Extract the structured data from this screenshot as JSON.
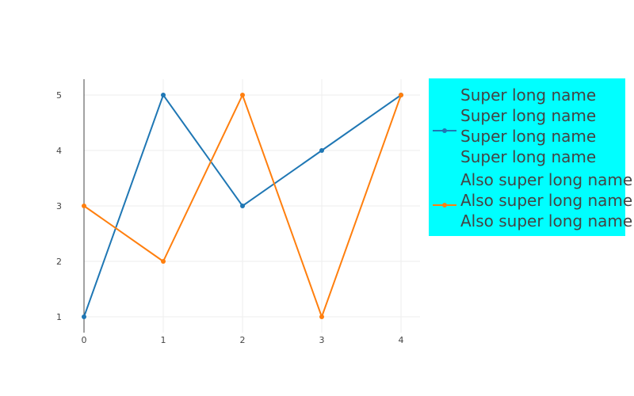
{
  "chart_data": {
    "type": "line",
    "x": [
      0,
      1,
      2,
      3,
      4
    ],
    "xlim": [
      0,
      4
    ],
    "ylim": [
      1,
      5
    ],
    "x_ticks": [
      "0",
      "1",
      "2",
      "3",
      "4"
    ],
    "y_ticks": [
      "1",
      "2",
      "3",
      "4",
      "5"
    ],
    "grid": true,
    "legend_position": "right",
    "legend_background": "#00ffff",
    "series": [
      {
        "name": "Super long name Super long name Super long name Super long name",
        "name_lines": [
          "Super long name",
          "Super long name",
          "Super long name",
          "Super long name"
        ],
        "values": [
          1,
          5,
          3,
          4,
          5
        ],
        "color": "#1f77b4",
        "mode": "lines+markers"
      },
      {
        "name": "Also super long name Also super long name Also super long name",
        "name_lines": [
          "Also super long name",
          "Also super long name",
          "Also super long name"
        ],
        "values": [
          3,
          2,
          5,
          1,
          5
        ],
        "color": "#ff7f0e",
        "mode": "lines+markers"
      }
    ]
  }
}
